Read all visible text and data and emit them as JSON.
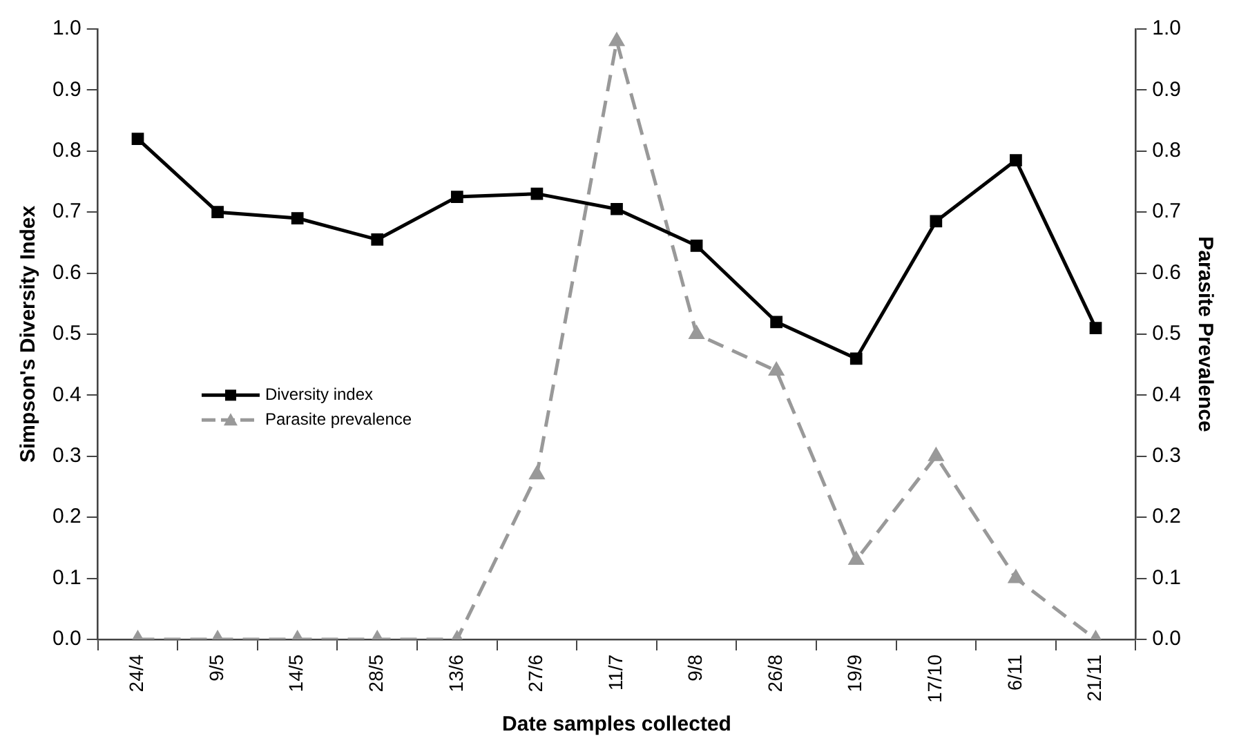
{
  "chart_data": {
    "type": "line",
    "xlabel": "Date samples collected",
    "ylabel": "Simpson's Diversity Index",
    "y2label": "Parasite Prevalence",
    "categories": [
      "24/4",
      "9/5",
      "14/5",
      "28/5",
      "13/6",
      "27/6",
      "11/7",
      "9/8",
      "26/8",
      "19/9",
      "17/10",
      "6/11",
      "21/11"
    ],
    "series": [
      {
        "name": "Diversity index",
        "color": "#000000",
        "marker": "square",
        "line_style": "solid",
        "values": [
          0.82,
          0.7,
          0.69,
          0.655,
          0.725,
          0.73,
          0.705,
          0.645,
          0.52,
          0.46,
          0.685,
          0.785,
          0.51
        ]
      },
      {
        "name": "Parasite prevalence",
        "color": "#999999",
        "marker": "triangle",
        "line_style": "dashed",
        "axis": "y2",
        "values": [
          0,
          0,
          0,
          0,
          0,
          0.27,
          0.98,
          0.5,
          0.44,
          0.13,
          0.3,
          0.1,
          0
        ]
      }
    ],
    "ylim": [
      0,
      1
    ],
    "yticks": [
      {
        "value": 0,
        "label": "0.0"
      },
      {
        "value": 0.1,
        "label": "0.1"
      },
      {
        "value": 0.2,
        "label": "0.2"
      },
      {
        "value": 0.3,
        "label": "0.3"
      },
      {
        "value": 0.4,
        "label": "0.4"
      },
      {
        "value": 0.5,
        "label": "0.5"
      },
      {
        "value": 0.6,
        "label": "0.6"
      },
      {
        "value": 0.7,
        "label": "0.7"
      },
      {
        "value": 0.8,
        "label": "0.8"
      },
      {
        "value": 0.9,
        "label": "0.9"
      },
      {
        "value": 1,
        "label": "1.0"
      }
    ],
    "y2lim": [
      0,
      1
    ],
    "y2ticks": [
      {
        "value": 0,
        "label": "0.0"
      },
      {
        "value": 0.1,
        "label": "0.1"
      },
      {
        "value": 0.2,
        "label": "0.2"
      },
      {
        "value": 0.3,
        "label": "0.3"
      },
      {
        "value": 0.4,
        "label": "0.4"
      },
      {
        "value": 0.5,
        "label": "0.5"
      },
      {
        "value": 0.6,
        "label": "0.6"
      },
      {
        "value": 0.7,
        "label": "0.7"
      },
      {
        "value": 0.8,
        "label": "0.8"
      },
      {
        "value": 0.9,
        "label": "0.9"
      },
      {
        "value": 1,
        "label": "1.0"
      }
    ],
    "grid": false,
    "legend": "left"
  }
}
